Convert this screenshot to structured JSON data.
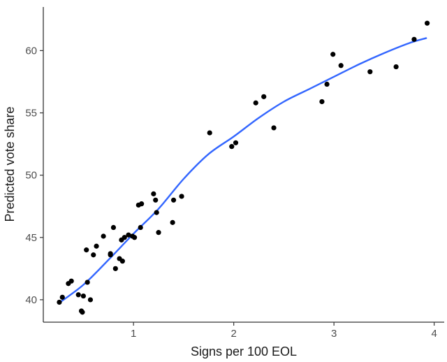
{
  "chart_data": {
    "type": "scatter",
    "title": "",
    "xlabel": "Signs per 100 EOL",
    "ylabel": "Predicted vote share",
    "xlim": [
      0.1,
      4.1
    ],
    "ylim": [
      38.2,
      63.5
    ],
    "xticks": [
      1,
      2,
      3,
      4
    ],
    "yticks": [
      40,
      45,
      50,
      55,
      60
    ],
    "grid": false,
    "legend": "none",
    "colors": {
      "points": "#000000",
      "smooth": "#3366ff",
      "axis": "#333333"
    },
    "points": [
      [
        0.26,
        39.8
      ],
      [
        0.29,
        40.2
      ],
      [
        0.35,
        41.3
      ],
      [
        0.38,
        41.5
      ],
      [
        0.45,
        40.4
      ],
      [
        0.48,
        39.1
      ],
      [
        0.49,
        39.0
      ],
      [
        0.5,
        40.3
      ],
      [
        0.53,
        44.0
      ],
      [
        0.54,
        41.4
      ],
      [
        0.57,
        40.0
      ],
      [
        0.6,
        43.6
      ],
      [
        0.63,
        44.3
      ],
      [
        0.7,
        45.1
      ],
      [
        0.77,
        43.6
      ],
      [
        0.77,
        43.7
      ],
      [
        0.8,
        45.8
      ],
      [
        0.82,
        42.5
      ],
      [
        0.86,
        43.3
      ],
      [
        0.88,
        44.8
      ],
      [
        0.89,
        43.1
      ],
      [
        0.91,
        45.0
      ],
      [
        0.95,
        45.2
      ],
      [
        0.99,
        45.1
      ],
      [
        1.01,
        45.0
      ],
      [
        1.05,
        47.6
      ],
      [
        1.08,
        47.7
      ],
      [
        1.07,
        45.8
      ],
      [
        1.2,
        48.5
      ],
      [
        1.22,
        48.0
      ],
      [
        1.23,
        47.0
      ],
      [
        1.25,
        45.4
      ],
      [
        1.39,
        46.2
      ],
      [
        1.4,
        48.0
      ],
      [
        1.48,
        48.3
      ],
      [
        1.76,
        53.4
      ],
      [
        1.98,
        52.3
      ],
      [
        2.02,
        52.6
      ],
      [
        2.22,
        55.8
      ],
      [
        2.3,
        56.3
      ],
      [
        2.4,
        53.8
      ],
      [
        2.88,
        55.9
      ],
      [
        2.93,
        57.3
      ],
      [
        2.99,
        59.7
      ],
      [
        3.07,
        58.8
      ],
      [
        3.36,
        58.3
      ],
      [
        3.62,
        58.7
      ],
      [
        3.8,
        60.9
      ],
      [
        3.93,
        62.2
      ]
    ],
    "smooth_line": {
      "x": [
        0.25,
        0.5,
        0.75,
        1.0,
        1.25,
        1.5,
        1.75,
        2.0,
        2.25,
        2.5,
        2.75,
        3.0,
        3.25,
        3.5,
        3.75,
        3.92
      ],
      "y": [
        39.7,
        41.2,
        43.2,
        45.3,
        47.3,
        49.7,
        51.7,
        53.1,
        54.6,
        55.9,
        56.9,
        57.9,
        58.9,
        59.8,
        60.6,
        61.0
      ]
    }
  }
}
